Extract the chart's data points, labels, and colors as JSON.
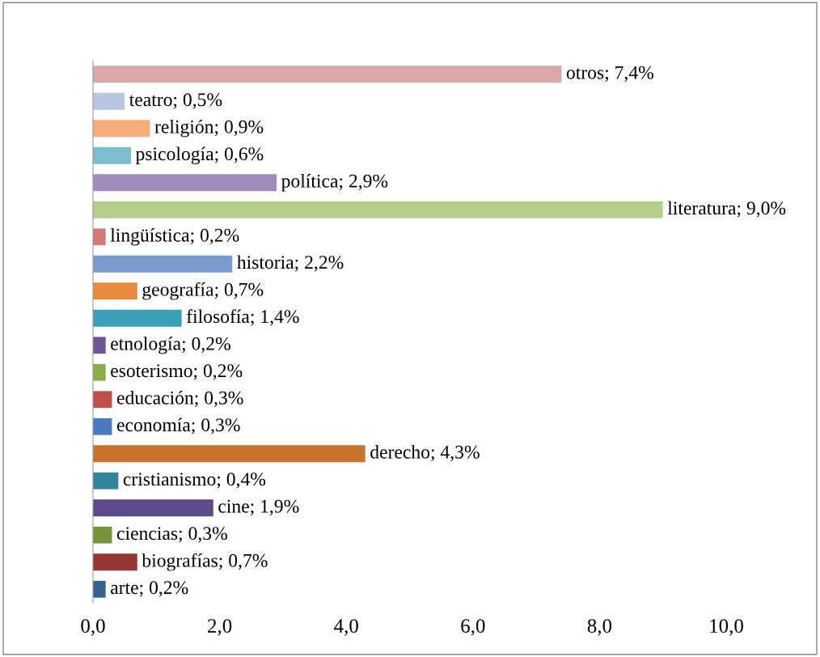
{
  "chart_data": {
    "type": "bar",
    "orientation": "horizontal",
    "categories": [
      null,
      null,
      null,
      null,
      null,
      null,
      null,
      null,
      null,
      null,
      null,
      null,
      null,
      null,
      null,
      null,
      null,
      null,
      null,
      null
    ],
    "values": [
      7.4,
      0.5,
      0.9,
      0.6,
      2.9,
      9.0,
      0.2,
      2.2,
      0.7,
      1.4,
      0.2,
      0.2,
      0.3,
      0.3,
      4.3,
      0.4,
      1.9,
      0.3,
      0.7,
      0.2
    ],
    "colors": [
      "#d9a9aa",
      "#b8c6e0",
      "#f9ab7a",
      "#7dbdd0",
      "#a08bbd",
      "#b3cf8a",
      "#d27a78",
      "#7b9bd0",
      "#e98b3f",
      "#3aa0ba",
      "#6f5596",
      "#8aad4a",
      "#c0504d",
      "#4a7abf",
      "#c8742e",
      "#31859c",
      "#5f4a8b",
      "#77933c",
      "#953735",
      "#376092"
    ],
    "value_labels": [
      "otros; 7,4%",
      "teatro; 0,5%",
      "religión; 0,9%",
      "psicología; 0,6%",
      "política; 2,9%",
      "literatura; 9,0%",
      "lingüística; 0,2%",
      "historia; 2,2%",
      "geografía; 0,7%",
      "filosofía; 1,4%",
      "etnología; 0,2%",
      "esoterismo; 0,2%",
      "educación; 0,3%",
      "economía; 0,3%",
      "derecho; 4,3%",
      "cristianismo; 0,4%",
      "cine; 1,9%",
      "ciencias; 0,3%",
      "biografías; 0,7%",
      "arte; 0,2%"
    ],
    "xlim": [
      0,
      10
    ],
    "xticks": [
      {
        "value": 0,
        "label": "0,0"
      },
      {
        "value": 2,
        "label": "2,0"
      },
      {
        "value": 4,
        "label": "4,0"
      },
      {
        "value": 6,
        "label": "6,0"
      },
      {
        "value": 8,
        "label": "8,0"
      },
      {
        "value": 10,
        "label": "10,0"
      }
    ],
    "tick_labels": "x",
    "grid": false,
    "legend": false
  }
}
